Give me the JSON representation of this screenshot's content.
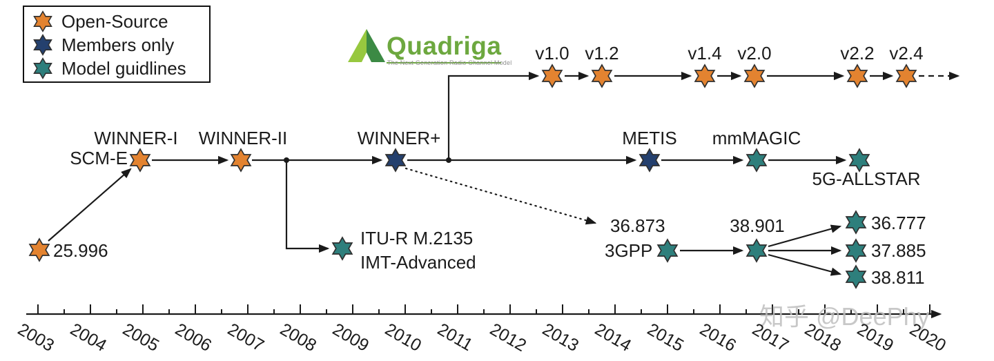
{
  "legend": {
    "items": [
      {
        "label": "Open-Source"
      },
      {
        "label": "Members only"
      },
      {
        "label": "Model guidlines"
      }
    ]
  },
  "colors": {
    "open_source": "#E38330",
    "members_only": "#24406E",
    "model_guidelines": "#2E7F7C",
    "logo_green": "#6DA83F",
    "line": "#1a1a1a"
  },
  "logo": {
    "wordmark": "Quadriga",
    "caption": "The Next Generation Radio Channel Model"
  },
  "nodes": {
    "tr25996": "25.996",
    "scm_e": "SCM-E",
    "winner_i": "WINNER-I",
    "winner_ii": "WINNER-II",
    "winner_plus": "WINNER+",
    "itu_r": "ITU-R M.2135",
    "imt_advanced": "IMT-Advanced",
    "metis": "METIS",
    "mmmagic": "mmMAGIC",
    "fiveg_allstar": "5G-ALLSTAR",
    "v1_0": "v1.0",
    "v1_2": "v1.2",
    "v1_4": "v1.4",
    "v2_0": "v2.0",
    "v2_2": "v2.2",
    "v2_4": "v2.4",
    "tr36873": "36.873",
    "gpp3": "3GPP",
    "tr38901": "38.901",
    "tr36777": "36.777",
    "tr37885": "37.885",
    "tr38811": "38.811"
  },
  "timeline": {
    "years": [
      "2003",
      "2004",
      "2005",
      "2006",
      "2007",
      "2008",
      "2009",
      "2010",
      "2011",
      "2012",
      "2013",
      "2014",
      "2015",
      "2016",
      "2017",
      "2018",
      "2019",
      "2020"
    ]
  },
  "watermark": "知乎 @DeePhy"
}
